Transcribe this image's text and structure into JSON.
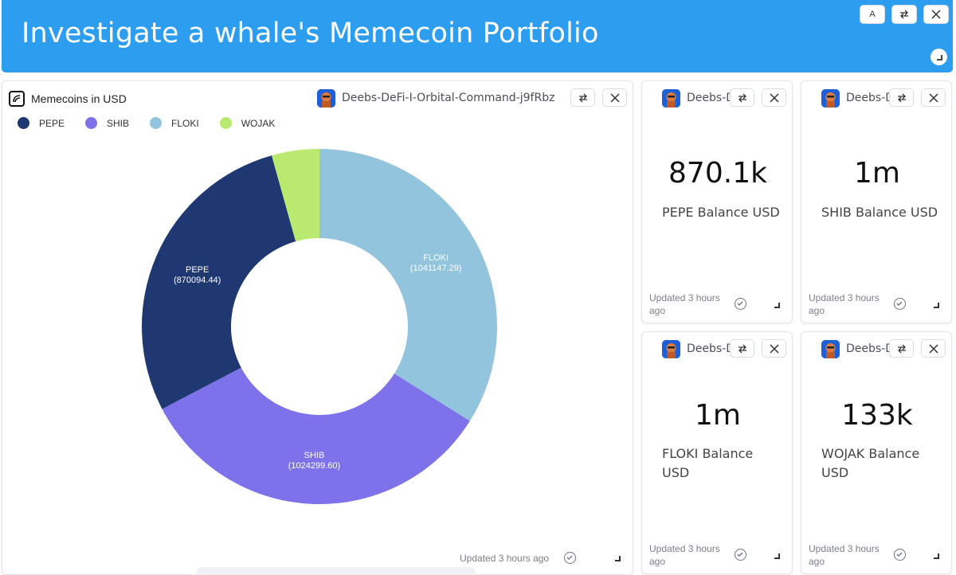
{
  "header": {
    "title": "Investigate a whale's Memecoin Portfolio",
    "btn_a_label": "A",
    "bg_color": "#2d9df0"
  },
  "main_card": {
    "title": "Memecoins in USD",
    "owner": "Deebs-DeFi-I-Orbital-Command-j9fRbz",
    "updated": "Updated 3 hours ago"
  },
  "chart_data": {
    "type": "pie",
    "title": "Memecoins in USD",
    "categories": [
      "PEPE",
      "SHIB",
      "FLOKI",
      "WOJAK"
    ],
    "values": [
      870094.44,
      1024299.6,
      1041147.29,
      133000
    ],
    "value_labels": [
      "(870094.44)",
      "(1024299.60)",
      "(1041147.29)",
      ""
    ],
    "colors": [
      "#1f3871",
      "#7e72ea",
      "#93c4dd",
      "#b9ea6f"
    ],
    "donut": true,
    "legend": "top-left"
  },
  "stat_cards": [
    {
      "owner": "Deebs-D",
      "value": "870.1k",
      "label": "PEPE Balance USD",
      "updated": "Updated 3 hours ago"
    },
    {
      "owner": "Deebs-D",
      "value": "1m",
      "label": "SHIB Balance USD",
      "updated": "Updated 3 hours ago"
    },
    {
      "owner": "Deebs-D",
      "value": "1m",
      "label": "FLOKI Balance USD",
      "updated": "Updated 3 hours ago"
    },
    {
      "owner": "Deebs-D",
      "value": "133k",
      "label": "WOJAK Balance USD",
      "updated": "Updated 3 hours ago"
    }
  ]
}
